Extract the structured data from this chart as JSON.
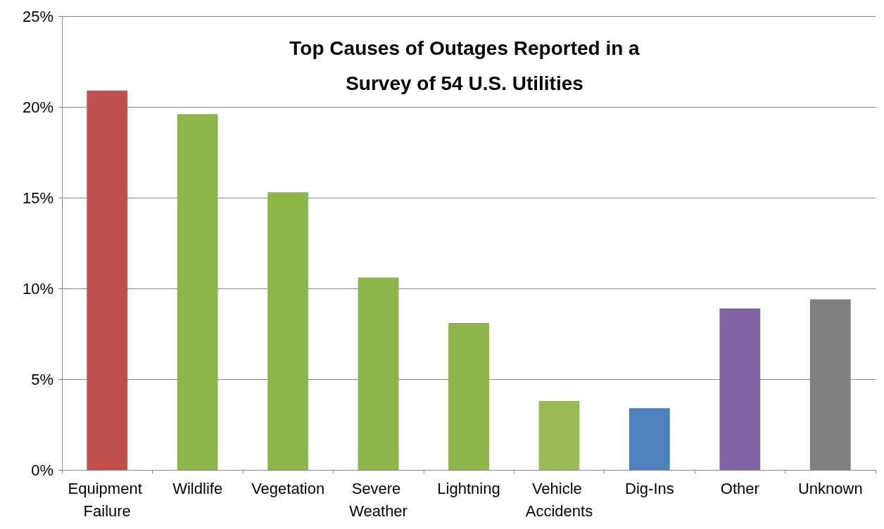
{
  "chart_data": {
    "type": "bar",
    "title": "Top Causes of Outages Reported in a\nSurvey of 54 U.S. Utilities",
    "categories": [
      "Equipment Failure",
      "Wildlife",
      "Vegetation",
      "Severe Weather",
      "Lightning",
      "Vehicle Accidents",
      "Dig-Ins",
      "Other",
      "Unknown"
    ],
    "values": [
      20.9,
      19.6,
      15.3,
      10.6,
      8.1,
      3.8,
      3.4,
      8.9,
      9.4
    ],
    "colors": [
      "#c0504d",
      "#8db548",
      "#8db548",
      "#8db548",
      "#8db548",
      "#9bbb59",
      "#4f81bd",
      "#8064a2",
      "#7f7f7f"
    ],
    "ylim": [
      0,
      25
    ],
    "yticks": [
      {
        "value": 0,
        "label": "0%"
      },
      {
        "value": 5,
        "label": "5%"
      },
      {
        "value": 10,
        "label": "10%"
      },
      {
        "value": 15,
        "label": "15%"
      },
      {
        "value": 20,
        "label": "20%"
      },
      {
        "value": 25,
        "label": "25%"
      }
    ],
    "grid": "y"
  }
}
